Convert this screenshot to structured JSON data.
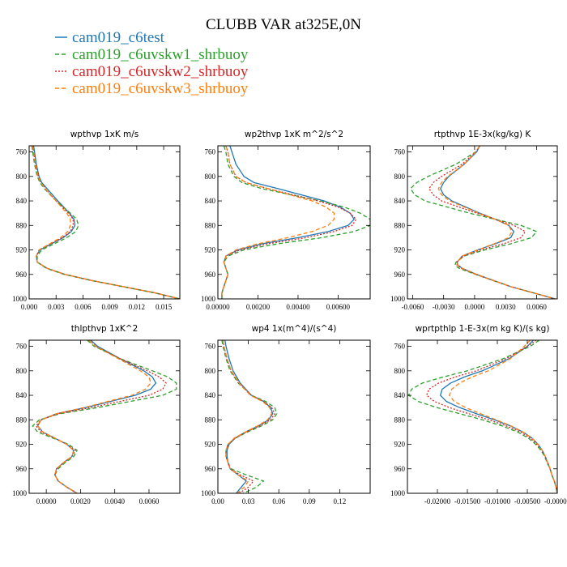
{
  "figure": {
    "title": "CLUBB VAR at325E,0N"
  },
  "legend": [
    {
      "name": "cam019_c6test",
      "color": "#1f77b4",
      "dash": "solid"
    },
    {
      "name": "cam019_c6uvskw1_shrbuoy",
      "color": "#2ca02c",
      "dash": "dashed"
    },
    {
      "name": "cam019_c6uvskw2_shrbuoy",
      "color": "#d62728",
      "dash": "dotted"
    },
    {
      "name": "cam019_c6uvskw3_shrbuoy",
      "color": "#ff7f0e",
      "dash": "dashed"
    }
  ],
  "chart_data": [
    {
      "type": "line",
      "title": "wpthvp  1xK m/s",
      "xlim": [
        0,
        0.0168
      ],
      "ylim": [
        1000,
        750
      ],
      "xticks": [
        0.0,
        0.003,
        0.006,
        0.009,
        0.012,
        0.015
      ],
      "xtick_labels": [
        "0.000",
        "0.003",
        "0.006",
        "0.009",
        "0.012",
        "0.015"
      ],
      "yticks": [
        760,
        800,
        840,
        880,
        920,
        960,
        1000
      ],
      "ytick_labels": [
        "760",
        "800",
        "840",
        "880",
        "920",
        "960",
        "1000"
      ],
      "y": [
        750,
        760,
        780,
        800,
        810,
        820,
        840,
        860,
        870,
        880,
        890,
        900,
        910,
        920,
        930,
        940,
        950,
        960,
        970,
        980,
        990,
        1000
      ],
      "series": [
        {
          "values": [
            0.0005,
            0.0006,
            0.0008,
            0.0011,
            0.0014,
            0.002,
            0.0032,
            0.0045,
            0.005,
            0.0051,
            0.0047,
            0.0038,
            0.0025,
            0.0012,
            0.0008,
            0.0009,
            0.002,
            0.004,
            0.007,
            0.0105,
            0.014,
            0.0168
          ]
        },
        {
          "values": [
            0.0003,
            0.0004,
            0.0006,
            0.0009,
            0.0012,
            0.0017,
            0.003,
            0.0046,
            0.0053,
            0.0055,
            0.0052,
            0.0042,
            0.0028,
            0.0014,
            0.0009,
            0.0009,
            0.0019,
            0.0039,
            0.0069,
            0.0104,
            0.0139,
            0.0168
          ]
        },
        {
          "values": [
            0.0004,
            0.0005,
            0.0007,
            0.001,
            0.0013,
            0.0018,
            0.003,
            0.0044,
            0.0049,
            0.0049,
            0.0046,
            0.0037,
            0.0024,
            0.0011,
            0.0008,
            0.0009,
            0.002,
            0.004,
            0.007,
            0.0105,
            0.014,
            0.0168
          ]
        },
        {
          "values": [
            0.0004,
            0.0005,
            0.0007,
            0.001,
            0.0013,
            0.0018,
            0.003,
            0.0042,
            0.0046,
            0.0046,
            0.0043,
            0.0035,
            0.0023,
            0.0011,
            0.0008,
            0.0009,
            0.002,
            0.004,
            0.007,
            0.0105,
            0.014,
            0.0168
          ]
        }
      ]
    },
    {
      "type": "line",
      "title": "wp2thvp  1xK m^2/s^2",
      "xlim": [
        0,
        0.0076
      ],
      "ylim": [
        1000,
        750
      ],
      "xticks": [
        0.0,
        0.002,
        0.004,
        0.006
      ],
      "xtick_labels": [
        "0.00000",
        "0.00200",
        "0.00400",
        "0.00600"
      ],
      "yticks": [
        760,
        800,
        840,
        880,
        920,
        960,
        1000
      ],
      "ytick_labels": [
        "760",
        "800",
        "840",
        "880",
        "920",
        "960",
        "1000"
      ],
      "y": [
        750,
        760,
        780,
        800,
        810,
        820,
        840,
        850,
        860,
        870,
        880,
        890,
        900,
        910,
        920,
        930,
        940,
        950,
        960,
        970,
        980,
        990,
        1000
      ],
      "series": [
        {
          "values": [
            0.0006,
            0.0007,
            0.0009,
            0.0013,
            0.0018,
            0.003,
            0.0053,
            0.0061,
            0.0066,
            0.0068,
            0.0065,
            0.0055,
            0.004,
            0.0022,
            0.001,
            0.0004,
            0.0003,
            0.0004,
            0.0005,
            0.0004,
            0.0003,
            0.0002,
            0.0002
          ]
        },
        {
          "values": [
            0.0003,
            0.0004,
            0.0005,
            0.0008,
            0.0012,
            0.0022,
            0.0051,
            0.0063,
            0.0071,
            0.0076,
            0.0076,
            0.0068,
            0.0052,
            0.003,
            0.0013,
            0.0005,
            0.0003,
            0.0004,
            0.0005,
            0.0004,
            0.0003,
            0.0002,
            0.0002
          ]
        },
        {
          "values": [
            0.0004,
            0.0005,
            0.0006,
            0.0009,
            0.0014,
            0.0025,
            0.005,
            0.006,
            0.0066,
            0.0069,
            0.0067,
            0.0058,
            0.0044,
            0.0025,
            0.0011,
            0.0004,
            0.0003,
            0.0004,
            0.0005,
            0.0004,
            0.0003,
            0.0002,
            0.0002
          ]
        },
        {
          "values": [
            0.0004,
            0.0005,
            0.0006,
            0.0009,
            0.0014,
            0.0025,
            0.0047,
            0.0054,
            0.0058,
            0.0058,
            0.0055,
            0.0047,
            0.0035,
            0.002,
            0.0009,
            0.0004,
            0.0003,
            0.0004,
            0.0005,
            0.0004,
            0.0003,
            0.0002,
            0.0002
          ]
        }
      ]
    },
    {
      "type": "line",
      "title": "rtpthvp  1E-3x(kg/kg) K",
      "xlim": [
        -0.0065,
        0.008
      ],
      "ylim": [
        1000,
        750
      ],
      "xticks": [
        -0.006,
        -0.003,
        0.0,
        0.003,
        0.006
      ],
      "xtick_labels": [
        "-0.0060",
        "-0.0030",
        "0.0000",
        "0.0030",
        "0.0060"
      ],
      "yticks": [
        760,
        800,
        840,
        880,
        920,
        960,
        1000
      ],
      "ytick_labels": [
        "760",
        "800",
        "840",
        "880",
        "920",
        "960",
        "1000"
      ],
      "y": [
        750,
        760,
        780,
        800,
        810,
        820,
        830,
        840,
        860,
        870,
        880,
        890,
        900,
        910,
        920,
        930,
        940,
        945,
        950,
        960,
        980,
        1000
      ],
      "series": [
        {
          "values": [
            0.0005,
            0.0002,
            -0.001,
            -0.0025,
            -0.003,
            -0.0033,
            -0.003,
            -0.0022,
            0.0005,
            0.002,
            0.0033,
            0.0038,
            0.0035,
            0.002,
            0.0003,
            -0.0012,
            -0.0017,
            -0.0016,
            -0.0012,
            0.0002,
            0.0035,
            0.0078
          ]
        },
        {
          "values": [
            0.0005,
            0.0001,
            -0.0018,
            -0.0045,
            -0.0056,
            -0.0062,
            -0.0058,
            -0.0048,
            -0.0005,
            0.002,
            0.0045,
            0.006,
            0.0055,
            0.0035,
            0.001,
            -0.001,
            -0.0018,
            -0.0019,
            -0.0015,
            0.0001,
            0.0035,
            0.0078
          ]
        },
        {
          "values": [
            0.0005,
            0.0001,
            -0.0012,
            -0.0032,
            -0.004,
            -0.0044,
            -0.004,
            -0.0032,
            0.0002,
            0.002,
            0.0038,
            0.0049,
            0.0045,
            0.0028,
            0.0006,
            -0.0011,
            -0.0017,
            -0.0017,
            -0.0013,
            0.0001,
            0.0035,
            0.0078
          ]
        },
        {
          "values": [
            0.0005,
            0.0001,
            -0.001,
            -0.0026,
            -0.0032,
            -0.0035,
            -0.0032,
            -0.0024,
            0.0004,
            0.002,
            0.0033,
            0.0036,
            0.0033,
            0.0019,
            0.0003,
            -0.0012,
            -0.0017,
            -0.0016,
            -0.0012,
            0.0002,
            0.0035,
            0.0078
          ]
        }
      ]
    },
    {
      "type": "line",
      "title": "thlpthvp  1xK^2",
      "xlim": [
        -0.001,
        0.0078
      ],
      "ylim": [
        1000,
        750
      ],
      "xticks": [
        0.0,
        0.002,
        0.004,
        0.006
      ],
      "xtick_labels": [
        "0.0000",
        "0.0020",
        "0.0040",
        "0.0060"
      ],
      "yticks": [
        760,
        800,
        840,
        880,
        920,
        960,
        1000
      ],
      "ytick_labels": [
        "760",
        "800",
        "840",
        "880",
        "920",
        "960",
        "1000"
      ],
      "y": [
        750,
        760,
        780,
        800,
        810,
        820,
        830,
        840,
        860,
        870,
        880,
        890,
        900,
        910,
        920,
        930,
        940,
        950,
        960,
        970,
        980,
        990,
        1000
      ],
      "series": [
        {
          "values": [
            0.0026,
            0.003,
            0.0043,
            0.0057,
            0.0062,
            0.0064,
            0.0061,
            0.0052,
            0.0023,
            0.0006,
            -0.0003,
            -0.0005,
            -0.0002,
            0.0005,
            0.0012,
            0.0016,
            0.0015,
            0.001,
            0.0006,
            0.0005,
            0.0007,
            0.0012,
            0.0018
          ]
        },
        {
          "values": [
            0.0024,
            0.0028,
            0.0043,
            0.0062,
            0.0071,
            0.0076,
            0.0076,
            0.0068,
            0.003,
            0.0008,
            -0.0004,
            -0.0008,
            -0.0005,
            0.0004,
            0.0013,
            0.0018,
            0.0016,
            0.0011,
            0.0007,
            0.0005,
            0.0007,
            0.0012,
            0.0018
          ]
        },
        {
          "values": [
            0.0025,
            0.0029,
            0.0043,
            0.0059,
            0.0066,
            0.007,
            0.0068,
            0.006,
            0.0026,
            0.0007,
            -0.0003,
            -0.0006,
            -0.0003,
            0.0005,
            0.0012,
            0.0017,
            0.0015,
            0.001,
            0.0006,
            0.0005,
            0.0007,
            0.0012,
            0.0018
          ]
        },
        {
          "values": [
            0.0025,
            0.0029,
            0.0042,
            0.0055,
            0.006,
            0.0061,
            0.0058,
            0.005,
            0.0022,
            0.0006,
            -0.0003,
            -0.0005,
            -0.0002,
            0.0005,
            0.0012,
            0.0016,
            0.0015,
            0.001,
            0.0006,
            0.0005,
            0.0007,
            0.0012,
            0.0018
          ]
        }
      ]
    },
    {
      "type": "line",
      "title": "wp4  1x(m^4)/(s^4)",
      "xlim": [
        0,
        0.15
      ],
      "ylim": [
        1000,
        750
      ],
      "xticks": [
        0.0,
        0.03,
        0.06,
        0.09,
        0.12
      ],
      "xtick_labels": [
        "0.00",
        "0.03",
        "0.06",
        "0.09",
        "0.12"
      ],
      "yticks": [
        760,
        800,
        840,
        880,
        920,
        960,
        1000
      ],
      "ytick_labels": [
        "760",
        "800",
        "840",
        "880",
        "920",
        "960",
        "1000"
      ],
      "y": [
        750,
        760,
        780,
        800,
        820,
        840,
        850,
        860,
        870,
        880,
        890,
        900,
        910,
        920,
        930,
        940,
        950,
        960,
        970,
        980,
        990,
        1000
      ],
      "series": [
        {
          "values": [
            0.007,
            0.008,
            0.011,
            0.015,
            0.022,
            0.033,
            0.045,
            0.052,
            0.054,
            0.05,
            0.04,
            0.027,
            0.017,
            0.011,
            0.009,
            0.009,
            0.01,
            0.012,
            0.02,
            0.028,
            0.023,
            0.018
          ]
        },
        {
          "values": [
            0.004,
            0.005,
            0.008,
            0.012,
            0.02,
            0.033,
            0.047,
            0.056,
            0.058,
            0.054,
            0.043,
            0.029,
            0.017,
            0.01,
            0.008,
            0.008,
            0.01,
            0.013,
            0.028,
            0.045,
            0.038,
            0.025
          ]
        },
        {
          "values": [
            0.005,
            0.006,
            0.009,
            0.013,
            0.021,
            0.033,
            0.045,
            0.053,
            0.056,
            0.052,
            0.041,
            0.028,
            0.017,
            0.01,
            0.008,
            0.008,
            0.01,
            0.012,
            0.022,
            0.035,
            0.03,
            0.021
          ]
        },
        {
          "values": [
            0.005,
            0.006,
            0.009,
            0.013,
            0.021,
            0.032,
            0.044,
            0.051,
            0.053,
            0.049,
            0.039,
            0.027,
            0.016,
            0.01,
            0.008,
            0.008,
            0.01,
            0.012,
            0.02,
            0.03,
            0.026,
            0.019
          ]
        }
      ]
    },
    {
      "type": "line",
      "title": "wprtpthlp  1-E-3x(m kg K)/(s kg)",
      "xlim": [
        -0.025,
        0.0
      ],
      "ylim": [
        1000,
        750
      ],
      "xticks": [
        -0.02,
        -0.015,
        -0.01,
        -0.005,
        0.0
      ],
      "xtick_labels": [
        "-0.02000",
        "-0.01500",
        "-0.01000",
        "-0.00500",
        "-0.00000"
      ],
      "yticks": [
        760,
        800,
        840,
        880,
        920,
        960,
        1000
      ],
      "ytick_labels": [
        "760",
        "800",
        "840",
        "880",
        "920",
        "960",
        "1000"
      ],
      "y": [
        750,
        760,
        780,
        800,
        810,
        820,
        830,
        840,
        850,
        860,
        870,
        880,
        890,
        900,
        910,
        920,
        930,
        940,
        950,
        960,
        970,
        980,
        990,
        1000
      ],
      "series": [
        {
          "values": [
            -0.004,
            -0.005,
            -0.008,
            -0.0125,
            -0.0155,
            -0.0178,
            -0.0192,
            -0.0195,
            -0.0185,
            -0.0163,
            -0.0135,
            -0.0105,
            -0.0078,
            -0.0057,
            -0.0042,
            -0.0032,
            -0.0025,
            -0.002,
            -0.0016,
            -0.0012,
            -0.0009,
            -0.0005,
            -0.0002,
            0.0
          ]
        },
        {
          "values": [
            -0.003,
            -0.0045,
            -0.009,
            -0.015,
            -0.019,
            -0.0225,
            -0.0243,
            -0.0248,
            -0.0232,
            -0.0201,
            -0.0163,
            -0.0125,
            -0.0092,
            -0.0066,
            -0.0048,
            -0.0036,
            -0.0027,
            -0.0021,
            -0.0017,
            -0.0012,
            -0.0009,
            -0.0005,
            -0.0002,
            0.0
          ]
        },
        {
          "values": [
            -0.0035,
            -0.005,
            -0.0085,
            -0.0135,
            -0.017,
            -0.0198,
            -0.0214,
            -0.0218,
            -0.0205,
            -0.018,
            -0.0148,
            -0.0114,
            -0.0085,
            -0.0061,
            -0.0045,
            -0.0034,
            -0.0026,
            -0.002,
            -0.0016,
            -0.0012,
            -0.0009,
            -0.0005,
            -0.0002,
            0.0
          ]
        },
        {
          "values": [
            -0.0045,
            -0.0055,
            -0.0078,
            -0.0115,
            -0.0142,
            -0.0163,
            -0.0176,
            -0.018,
            -0.0172,
            -0.0153,
            -0.0128,
            -0.0102,
            -0.0077,
            -0.0057,
            -0.0042,
            -0.0032,
            -0.0025,
            -0.002,
            -0.0016,
            -0.0012,
            -0.0009,
            -0.0005,
            -0.0002,
            0.0
          ]
        }
      ]
    }
  ]
}
